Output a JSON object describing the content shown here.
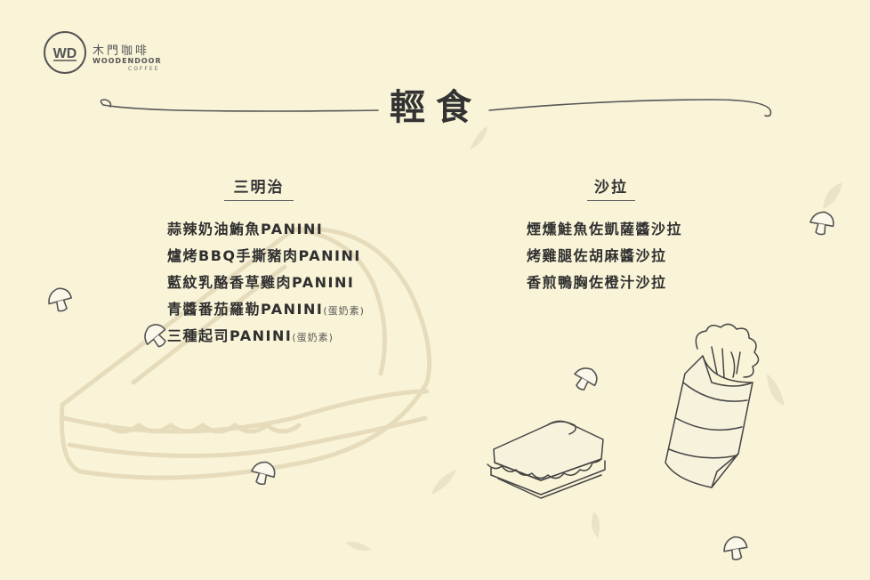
{
  "brand": {
    "name_cn": "木門咖啡",
    "name_en": "WOODENDOOR",
    "sub_en": "COFFEE",
    "logo_mark": "WD"
  },
  "title": "輕食",
  "sections": {
    "sandwich": {
      "heading": "三明治",
      "items": [
        {
          "name": "蒜辣奶油鮪魚PANINI",
          "note": ""
        },
        {
          "name": "爐烤BBQ手撕豬肉PANINI",
          "note": ""
        },
        {
          "name": "藍紋乳酪香草雞肉PANINI",
          "note": ""
        },
        {
          "name": "青醬番茄羅勒PANINI",
          "note": "(蛋奶素)"
        },
        {
          "name": "三種起司PANINI",
          "note": "(蛋奶素)"
        }
      ]
    },
    "salad": {
      "heading": "沙拉",
      "items": [
        {
          "name": "煙燻鮭魚佐凱薩醬沙拉",
          "note": ""
        },
        {
          "name": "烤雞腿佐胡麻醬沙拉",
          "note": ""
        },
        {
          "name": "香煎鴨胸佐橙汁沙拉",
          "note": ""
        }
      ]
    }
  },
  "colors": {
    "background": "#f9f4d8",
    "text": "#333333",
    "watermark": "#e6dcbc",
    "leaf": "#ebe3c6",
    "line_art": "#555555"
  },
  "icons": [
    "logo-mark-icon",
    "sandwich-watermark-icon",
    "sandwich-illustration-icon",
    "wrap-illustration-icon",
    "mushroom-icon",
    "leaf-icon"
  ]
}
